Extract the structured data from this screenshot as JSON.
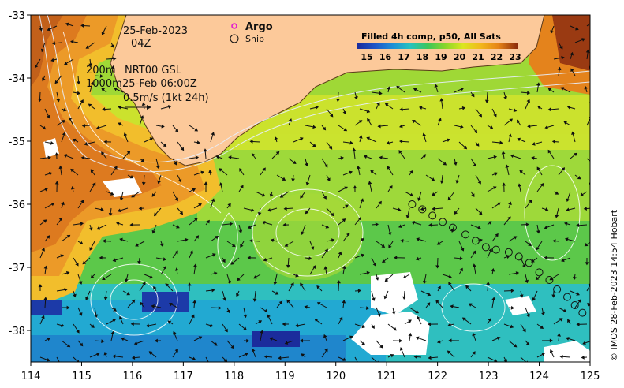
{
  "map": {
    "date": "25-Feb-2023",
    "time": "04Z",
    "contour_labels": [
      "200m",
      "1000m"
    ],
    "source": "NRT00 GSL",
    "analysis_time": "25-Feb 06:00Z",
    "current_scale": "0.5m/s (1kt 24h)",
    "legend": {
      "argo": "Argo",
      "ship": "Ship"
    },
    "colorbar": {
      "title": "Filled 4h comp, p50, All Sats",
      "ticks": [
        "15",
        "16",
        "17",
        "18",
        "19",
        "20",
        "21",
        "22",
        "23"
      ],
      "colors": [
        "#1b2c9c",
        "#1e55c8",
        "#1f8fd6",
        "#25c2c0",
        "#3cc65a",
        "#8ad62a",
        "#dbe61e",
        "#f2b81b",
        "#e68416",
        "#8c2b0b"
      ]
    },
    "credit": "© IMOS 28-Feb-2023 14:54 Hobart",
    "x_axis": {
      "ticks": [
        "114",
        "115",
        "116",
        "117",
        "118",
        "119",
        "120",
        "121",
        "122",
        "123",
        "124",
        "125"
      ],
      "range": [
        114,
        125
      ]
    },
    "y_axis": {
      "ticks": [
        "-33",
        "-34",
        "-35",
        "-36",
        "-37",
        "-38"
      ],
      "range": [
        -38.5,
        -33
      ]
    },
    "land_color": "#fcc99a",
    "ship_track": [
      [
        121.5,
        -36.0
      ],
      [
        121.7,
        -36.08
      ],
      [
        121.9,
        -36.18
      ],
      [
        122.1,
        -36.28
      ],
      [
        122.3,
        -36.37
      ],
      [
        122.55,
        -36.48
      ],
      [
        122.75,
        -36.58
      ],
      [
        122.95,
        -36.68
      ],
      [
        123.15,
        -36.72
      ],
      [
        123.4,
        -36.76
      ],
      [
        123.6,
        -36.83
      ],
      [
        123.8,
        -36.93
      ],
      [
        124.0,
        -37.08
      ],
      [
        124.2,
        -37.2
      ],
      [
        124.35,
        -37.35
      ],
      [
        124.55,
        -37.47
      ],
      [
        124.7,
        -37.6
      ],
      [
        124.85,
        -37.72
      ]
    ]
  }
}
